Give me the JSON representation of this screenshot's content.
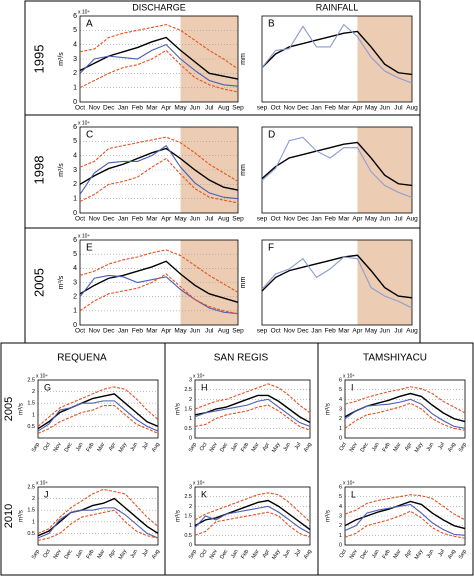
{
  "chart_data": [
    {
      "type": "line",
      "label": "A",
      "row_label": "1995",
      "column_title": "DISCHARGE",
      "ylabel": "m³/s",
      "y_multiplier": "x 10⁴",
      "categories": [
        "Oct",
        "Nov",
        "Dec",
        "Jan",
        "Feb",
        "Mar",
        "Apr",
        "May",
        "Jun",
        "Jul",
        "Aug",
        "Sep"
      ],
      "ylim": [
        0,
        6
      ],
      "yticks": [
        0,
        1,
        2,
        3,
        4,
        5,
        6
      ],
      "grid": true,
      "highlight": [
        "May",
        "Sep"
      ],
      "series": [
        {
          "color": "#e8501e",
          "dash": true,
          "values": [
            3.5,
            3.7,
            4.5,
            4.8,
            5,
            5.2,
            5.4,
            5.0,
            4.3,
            3.6,
            3.0,
            2.3
          ]
        },
        {
          "color": "#000000",
          "values": [
            2.2,
            2.7,
            3.2,
            3.5,
            3.8,
            4.2,
            4.5,
            3.6,
            2.8,
            2.0,
            1.8,
            1.6
          ]
        },
        {
          "color": "#4a5db8",
          "values": [
            2.0,
            3.0,
            3.2,
            3.1,
            3.0,
            3.6,
            4.0,
            3.0,
            2.2,
            1.5,
            1.2,
            1.1
          ]
        },
        {
          "color": "#e8501e",
          "dash": true,
          "values": [
            1.0,
            1.5,
            2.0,
            2.4,
            2.6,
            3.0,
            3.6,
            2.6,
            1.7,
            1.2,
            0.9,
            0.7
          ]
        }
      ]
    },
    {
      "type": "line",
      "label": "B",
      "column_title": "RAINFALL",
      "ylabel": "mm",
      "categories": [
        "sep",
        "Oct",
        "Nov",
        "Dec",
        "Jan",
        "Feb",
        "Mar",
        "Apr",
        "May",
        "Jun",
        "Jul",
        "Aug"
      ],
      "ylim": [
        0,
        250
      ],
      "highlight": [
        "Apr",
        "Aug"
      ],
      "series": [
        {
          "color": "#000000",
          "values": [
            100,
            140,
            160,
            170,
            180,
            190,
            200,
            205,
            160,
            110,
            85,
            80
          ]
        },
        {
          "color": "#8a9cd0",
          "values": [
            100,
            150,
            155,
            220,
            160,
            160,
            225,
            190,
            130,
            90,
            70,
            55
          ]
        }
      ]
    },
    {
      "type": "line",
      "label": "C",
      "row_label": "1998",
      "ylabel": "m³/s",
      "y_multiplier": "x 10⁴",
      "categories": [
        "Oct",
        "Nov",
        "Dec",
        "Jan",
        "Feb",
        "Mar",
        "Apr",
        "May",
        "Jun",
        "Jul",
        "Aug",
        "Sep"
      ],
      "ylim": [
        0,
        6
      ],
      "yticks": [
        0,
        1,
        2,
        3,
        4,
        5,
        6
      ],
      "grid": true,
      "highlight": [
        "May",
        "Sep"
      ],
      "series": [
        {
          "color": "#e8501e",
          "dash": true,
          "values": [
            3.2,
            3.6,
            4.5,
            4.7,
            4.9,
            5.1,
            5.3,
            4.9,
            4.2,
            3.4,
            2.8,
            2.2
          ]
        },
        {
          "color": "#000000",
          "values": [
            2.0,
            2.6,
            3.1,
            3.4,
            3.8,
            4.2,
            4.5,
            3.8,
            3.0,
            2.3,
            1.8,
            1.6
          ]
        },
        {
          "color": "#4a5db8",
          "values": [
            1.3,
            2.8,
            3.5,
            3.6,
            3.6,
            4.0,
            4.7,
            3.2,
            2.1,
            1.4,
            1.1,
            1.0
          ]
        },
        {
          "color": "#e8501e",
          "dash": true,
          "values": [
            0.8,
            1.3,
            2.0,
            2.2,
            2.5,
            3.2,
            3.8,
            2.7,
            1.7,
            1.1,
            0.9,
            0.7
          ]
        }
      ]
    },
    {
      "type": "line",
      "label": "D",
      "ylabel": "mm",
      "categories": [
        "sep",
        "Oct",
        "Nov",
        "Dec",
        "Jan",
        "Feb",
        "Mar",
        "Apr",
        "May",
        "Jun",
        "Jul",
        "Aug"
      ],
      "ylim": [
        0,
        250
      ],
      "highlight": [
        "Apr",
        "Aug"
      ],
      "series": [
        {
          "color": "#000000",
          "values": [
            100,
            135,
            160,
            170,
            180,
            190,
            200,
            205,
            160,
            110,
            85,
            80
          ]
        },
        {
          "color": "#8a9cd0",
          "values": [
            95,
            130,
            210,
            220,
            180,
            160,
            190,
            190,
            120,
            80,
            60,
            45
          ]
        }
      ]
    },
    {
      "type": "line",
      "label": "E",
      "row_label": "2005",
      "ylabel": "m³/s",
      "y_multiplier": "x 10⁴",
      "categories": [
        "Oct",
        "Nov",
        "Dec",
        "Jan",
        "Feb",
        "Mar",
        "Apr",
        "May",
        "Jun",
        "Jul",
        "Aug",
        "Sep"
      ],
      "ylim": [
        0,
        6
      ],
      "yticks": [
        0,
        1,
        2,
        3,
        4,
        5,
        6
      ],
      "grid": true,
      "highlight": [
        "May",
        "Sep"
      ],
      "series": [
        {
          "color": "#e8501e",
          "dash": true,
          "values": [
            3.5,
            3.8,
            4.3,
            4.6,
            4.8,
            5.1,
            5.3,
            4.9,
            4.2,
            3.5,
            2.9,
            2.3
          ]
        },
        {
          "color": "#000000",
          "values": [
            2.2,
            2.8,
            3.3,
            3.5,
            3.8,
            4.1,
            4.5,
            3.6,
            2.8,
            2.2,
            1.9,
            1.6
          ]
        },
        {
          "color": "#4a5db8",
          "values": [
            2.0,
            3.3,
            3.5,
            3.4,
            3.0,
            3.2,
            3.4,
            2.5,
            1.8,
            1.2,
            0.9,
            0.8
          ]
        },
        {
          "color": "#e8501e",
          "dash": true,
          "values": [
            1.0,
            1.7,
            2.2,
            2.4,
            2.6,
            3.0,
            3.6,
            2.7,
            1.8,
            1.3,
            1.0,
            0.8
          ]
        }
      ]
    },
    {
      "type": "line",
      "label": "F",
      "ylabel": "mm",
      "categories": [
        "sep",
        "Oct",
        "Nov",
        "Dec",
        "Jan",
        "Feb",
        "Mar",
        "Apr",
        "May",
        "Jun",
        "Jul",
        "Aug"
      ],
      "ylim": [
        0,
        250
      ],
      "highlight": [
        "Apr",
        "Aug"
      ],
      "series": [
        {
          "color": "#000000",
          "values": [
            100,
            140,
            160,
            170,
            180,
            190,
            200,
            205,
            160,
            110,
            85,
            80
          ]
        },
        {
          "color": "#8a9cd0",
          "values": [
            105,
            150,
            165,
            195,
            140,
            165,
            200,
            195,
            110,
            85,
            70,
            50
          ]
        }
      ]
    },
    {
      "type": "line",
      "label": "G",
      "row_label": "2005",
      "column_title": "REQUENA",
      "ylabel": "m³/s",
      "y_multiplier": "x 10⁴",
      "categories": [
        "Sep",
        "Oct",
        "Nov",
        "Dec",
        "Jan",
        "Feb",
        "Mar",
        "Apr",
        "May",
        "Jun",
        "Jul",
        "Aug"
      ],
      "ylim": [
        0,
        2.5
      ],
      "yticks": [
        0.5,
        1,
        1.5,
        2,
        2.5
      ],
      "grid": true,
      "series": [
        {
          "color": "#e8501e",
          "dash": true,
          "values": [
            0.5,
            0.9,
            1.3,
            1.5,
            1.7,
            1.9,
            2.1,
            2.2,
            2.1,
            1.7,
            1.2,
            0.8
          ]
        },
        {
          "color": "#000000",
          "values": [
            0.4,
            0.7,
            1.1,
            1.3,
            1.5,
            1.7,
            1.8,
            1.9,
            1.5,
            1.1,
            0.7,
            0.5
          ]
        },
        {
          "color": "#4a5db8",
          "values": [
            0.3,
            0.6,
            1.2,
            1.3,
            1.5,
            1.5,
            1.6,
            1.6,
            1.2,
            0.8,
            0.5,
            0.3
          ]
        },
        {
          "color": "#e8501e",
          "dash": true,
          "values": [
            0.2,
            0.4,
            0.7,
            0.9,
            1.1,
            1.2,
            1.4,
            1.4,
            1.0,
            0.6,
            0.4,
            0.2
          ]
        }
      ]
    },
    {
      "type": "line",
      "label": "H",
      "column_title": "SAN REGIS",
      "ylabel": "m³/s",
      "y_multiplier": "x 10⁴",
      "categories": [
        "Sep",
        "Oct",
        "Nov",
        "Dec",
        "Jan",
        "Feb",
        "Mar",
        "Apr",
        "May",
        "Jun",
        "Jul",
        "Aug"
      ],
      "ylim": [
        0,
        3
      ],
      "yticks": [
        0,
        0.5,
        1,
        1.5,
        2,
        2.5,
        3
      ],
      "grid": true,
      "series": [
        {
          "color": "#e8501e",
          "dash": true,
          "values": [
            1.5,
            1.7,
            1.9,
            2.0,
            2.2,
            2.4,
            2.6,
            2.8,
            2.6,
            2.2,
            1.7,
            1.3
          ]
        },
        {
          "color": "#000000",
          "values": [
            1.2,
            1.3,
            1.5,
            1.6,
            1.8,
            2.0,
            2.2,
            2.2,
            1.9,
            1.5,
            1.1,
            0.8
          ]
        },
        {
          "color": "#4a5db8",
          "values": [
            1.1,
            1.3,
            1.4,
            1.5,
            1.6,
            1.7,
            1.9,
            2.0,
            1.6,
            1.2,
            0.8,
            0.6
          ]
        },
        {
          "color": "#e8501e",
          "dash": true,
          "values": [
            0.6,
            0.7,
            1.0,
            1.2,
            1.3,
            1.4,
            1.6,
            1.7,
            1.4,
            1.0,
            0.6,
            0.4
          ]
        }
      ]
    },
    {
      "type": "line",
      "label": "I",
      "column_title": "TAMSHIYACU",
      "ylabel": "m³/s",
      "y_multiplier": "x 10⁴",
      "categories": [
        "Oct",
        "Nov",
        "Dec",
        "Jan",
        "Feb",
        "Mar",
        "Apr",
        "May",
        "Jun",
        "Jul",
        "Aug",
        "Sep"
      ],
      "ylim": [
        0,
        6
      ],
      "yticks": [
        0,
        1,
        2,
        3,
        4,
        5,
        6
      ],
      "grid": true,
      "series": [
        {
          "color": "#e8501e",
          "dash": true,
          "values": [
            3.5,
            3.8,
            4.2,
            4.5,
            4.8,
            5.0,
            5.3,
            5.1,
            4.6,
            3.8,
            3.2,
            2.6
          ]
        },
        {
          "color": "#000000",
          "values": [
            2.2,
            2.8,
            3.3,
            3.6,
            3.9,
            4.3,
            4.6,
            4.3,
            3.4,
            2.6,
            2.0,
            1.7
          ]
        },
        {
          "color": "#4a5db8",
          "values": [
            2.0,
            2.8,
            3.3,
            3.4,
            3.5,
            3.7,
            4.0,
            3.5,
            2.5,
            1.8,
            1.2,
            1.0
          ]
        },
        {
          "color": "#e8501e",
          "dash": true,
          "values": [
            1.0,
            1.8,
            2.4,
            2.6,
            2.9,
            3.2,
            3.6,
            3.0,
            2.0,
            1.4,
            1.0,
            0.8
          ]
        }
      ]
    },
    {
      "type": "line",
      "label": "J",
      "row_label": "2010",
      "ylabel": "m³/s",
      "y_multiplier": "x 10⁴",
      "categories": [
        "Sep",
        "Oct",
        "Nov",
        "Dec",
        "Jan",
        "Feb",
        "Mar",
        "Apr",
        "May",
        "Jun",
        "Jul",
        "Aug"
      ],
      "ylim": [
        0,
        2.5
      ],
      "yticks": [
        0.5,
        1,
        1.5,
        2,
        2.5
      ],
      "grid": true,
      "series": [
        {
          "color": "#e8501e",
          "dash": true,
          "values": [
            0.5,
            0.7,
            1.2,
            1.6,
            1.9,
            2.2,
            2.4,
            2.3,
            2.2,
            1.7,
            1.2,
            0.8
          ]
        },
        {
          "color": "#000000",
          "values": [
            0.4,
            0.6,
            1.0,
            1.4,
            1.5,
            1.7,
            1.8,
            2.0,
            1.6,
            1.2,
            0.8,
            0.5
          ]
        },
        {
          "color": "#4a5db8",
          "values": [
            0.3,
            0.5,
            1.1,
            1.4,
            1.5,
            1.5,
            1.6,
            1.6,
            1.3,
            0.9,
            0.5,
            0.3
          ]
        },
        {
          "color": "#e8501e",
          "dash": true,
          "values": [
            0.2,
            0.3,
            0.5,
            0.9,
            1.2,
            1.3,
            1.4,
            1.5,
            1.0,
            0.6,
            0.4,
            0.3
          ]
        }
      ]
    },
    {
      "type": "line",
      "label": "K",
      "ylabel": "m³/s",
      "y_multiplier": "x 10⁴",
      "categories": [
        "Sep",
        "Oct",
        "Nov",
        "Dec",
        "Jan",
        "Feb",
        "Mar",
        "Apr",
        "May",
        "Jun",
        "Jul",
        "Aug"
      ],
      "ylim": [
        0,
        3
      ],
      "yticks": [
        0,
        0.5,
        1,
        1.5,
        2,
        2.5,
        3
      ],
      "grid": true,
      "series": [
        {
          "color": "#e8501e",
          "dash": true,
          "values": [
            1.3,
            1.6,
            1.8,
            2.0,
            2.2,
            2.4,
            2.6,
            2.7,
            2.6,
            2.2,
            1.7,
            1.2
          ]
        },
        {
          "color": "#000000",
          "values": [
            1.0,
            1.3,
            1.4,
            1.6,
            1.8,
            2.0,
            2.2,
            2.3,
            2.0,
            1.6,
            1.2,
            0.8
          ]
        },
        {
          "color": "#4a5db8",
          "values": [
            0.9,
            1.5,
            1.3,
            1.6,
            1.7,
            1.8,
            1.9,
            2.0,
            1.7,
            1.3,
            0.9,
            0.6
          ]
        },
        {
          "color": "#e8501e",
          "dash": true,
          "values": [
            0.5,
            0.7,
            1.2,
            1.3,
            1.4,
            1.5,
            1.6,
            1.7,
            1.5,
            1.0,
            0.6,
            0.4
          ]
        }
      ]
    },
    {
      "type": "line",
      "label": "L",
      "ylabel": "m³/s",
      "y_multiplier": "x 10⁴",
      "categories": [
        "Oct",
        "Nov",
        "Dec",
        "Jan",
        "Feb",
        "Mar",
        "Apr",
        "May",
        "Jun",
        "Jul",
        "Aug",
        "Sep"
      ],
      "ylim": [
        0,
        6
      ],
      "yticks": [
        0,
        1,
        2,
        3,
        4,
        5,
        6
      ],
      "grid": true,
      "series": [
        {
          "color": "#e8501e",
          "dash": true,
          "values": [
            3.2,
            3.6,
            4.3,
            4.6,
            4.8,
            5.0,
            5.2,
            5.1,
            4.8,
            4.0,
            3.2,
            2.6
          ]
        },
        {
          "color": "#000000",
          "values": [
            2.0,
            2.6,
            3.0,
            3.4,
            3.7,
            4.1,
            4.5,
            4.2,
            3.3,
            2.6,
            2.0,
            1.7
          ]
        },
        {
          "color": "#4a5db8",
          "values": [
            1.5,
            2.0,
            3.3,
            3.6,
            3.8,
            4.0,
            4.2,
            3.3,
            2.3,
            1.6,
            1.1,
            1.0
          ]
        },
        {
          "color": "#e8501e",
          "dash": true,
          "values": [
            0.8,
            1.2,
            2.0,
            2.3,
            2.6,
            3.0,
            3.5,
            2.8,
            1.8,
            1.2,
            0.9,
            0.7
          ]
        }
      ]
    }
  ]
}
